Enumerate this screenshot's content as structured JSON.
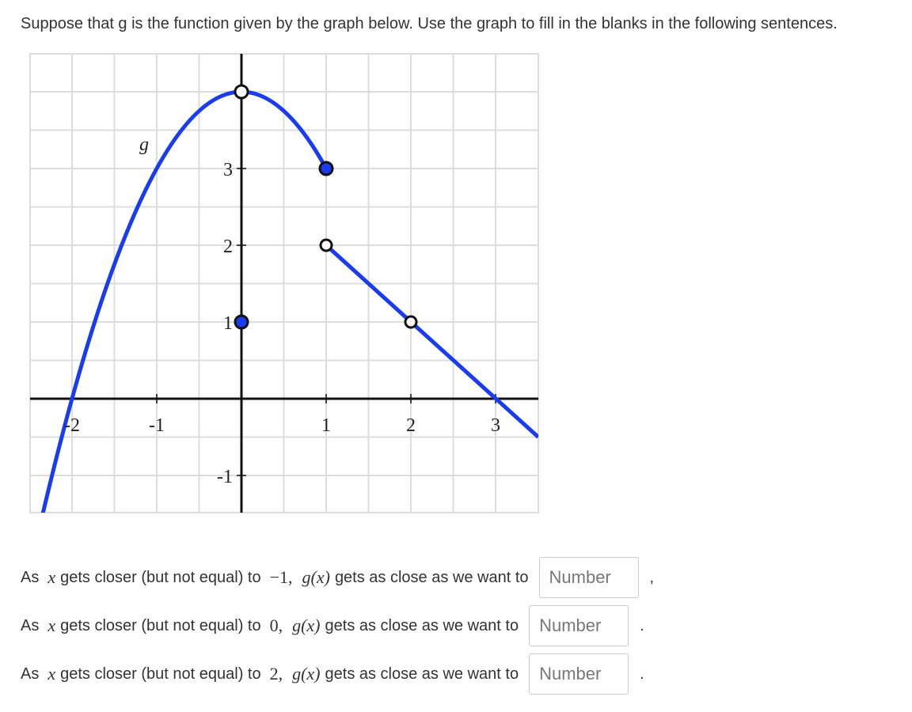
{
  "prompt": "Suppose that g is the function given by the graph below. Use the graph to fill in the blanks in the following sentences.",
  "graph": {
    "function_label": "g",
    "x_tick_labels": [
      "-2",
      "-1",
      "1",
      "2",
      "3"
    ],
    "y_tick_labels": [
      "3",
      "2",
      "1",
      "-1"
    ]
  },
  "questions": [
    {
      "lead": "As",
      "variable": "x",
      "phrase": "gets closer (but not equal) to",
      "target": "−1,",
      "function": "g(x)",
      "phrase2": "gets as close as we want to",
      "placeholder": "Number",
      "end": ","
    },
    {
      "lead": "As",
      "variable": "x",
      "phrase": "gets closer (but not equal) to",
      "target": "0,",
      "function": "g(x)",
      "phrase2": "gets as close as we want to",
      "placeholder": "Number",
      "end": "."
    },
    {
      "lead": "As",
      "variable": "x",
      "phrase": "gets closer (but not equal) to",
      "target": "2,",
      "function": "g(x)",
      "phrase2": "gets as close as we want to",
      "placeholder": "Number",
      "end": "."
    }
  ]
}
